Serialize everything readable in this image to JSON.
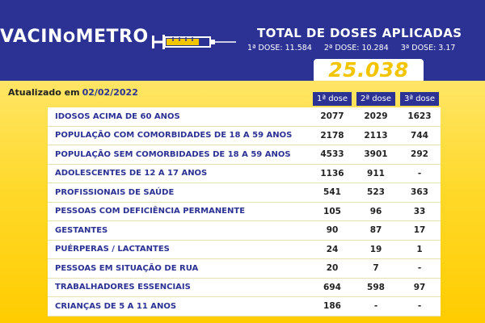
{
  "header": {
    "logo": {
      "part1": "VACIN",
      "o": "O",
      "part2": "METRO"
    },
    "total_title": "TOTAL DE DOSES APLICADAS",
    "doses_summary": {
      "d1": "1ª DOSE: 11.584",
      "d2": "2ª DOSE: 10.284",
      "d3": "3ª DOSE: 3.17"
    },
    "total_value": "25.038"
  },
  "updated": {
    "label": "Atualizado em",
    "date": "02/02/2022"
  },
  "table": {
    "headers": [
      "1ª dose",
      "2ª dose",
      "3ª dose"
    ],
    "rows": [
      {
        "label": "IDOSOS ACIMA DE 60 ANOS",
        "d1": "2077",
        "d2": "2029",
        "d3": "1623"
      },
      {
        "label": "POPULAÇÃO COM COMORBIDADES DE 18 A 59 ANOS",
        "d1": "2178",
        "d2": "2113",
        "d3": "744"
      },
      {
        "label": "POPULAÇÃO SEM COMORBIDADES DE 18 A 59 ANOS",
        "d1": "4533",
        "d2": "3901",
        "d3": "292"
      },
      {
        "label": "ADOLESCENTES DE 12 A 17 ANOS",
        "d1": "1136",
        "d2": "911",
        "d3": "-"
      },
      {
        "label": "PROFISSIONAIS DE SAÚDE",
        "d1": "541",
        "d2": "523",
        "d3": "363"
      },
      {
        "label": "PESSOAS COM DEFICIÊNCIA PERMANENTE",
        "d1": "105",
        "d2": "96",
        "d3": "33"
      },
      {
        "label": "GESTANTES",
        "d1": "90",
        "d2": "87",
        "d3": "17"
      },
      {
        "label": "PUÉRPERAS / LACTANTES",
        "d1": "24",
        "d2": "19",
        "d3": "1"
      },
      {
        "label": "PESSOAS EM SITUAÇÃO DE RUA",
        "d1": "20",
        "d2": "7",
        "d3": "-"
      },
      {
        "label": "TRABALHADORES ESSENCIAIS",
        "d1": "694",
        "d2": "598",
        "d3": "97"
      },
      {
        "label": "CRIANÇAS DE 5 A 11 ANOS",
        "d1": "186",
        "d2": "-",
        "d3": "-"
      }
    ]
  },
  "colors": {
    "navy": "#2b3293",
    "yellow": "#ffd92a",
    "total_yellow": "#f3c400"
  },
  "icons": [
    "syringe-icon"
  ]
}
